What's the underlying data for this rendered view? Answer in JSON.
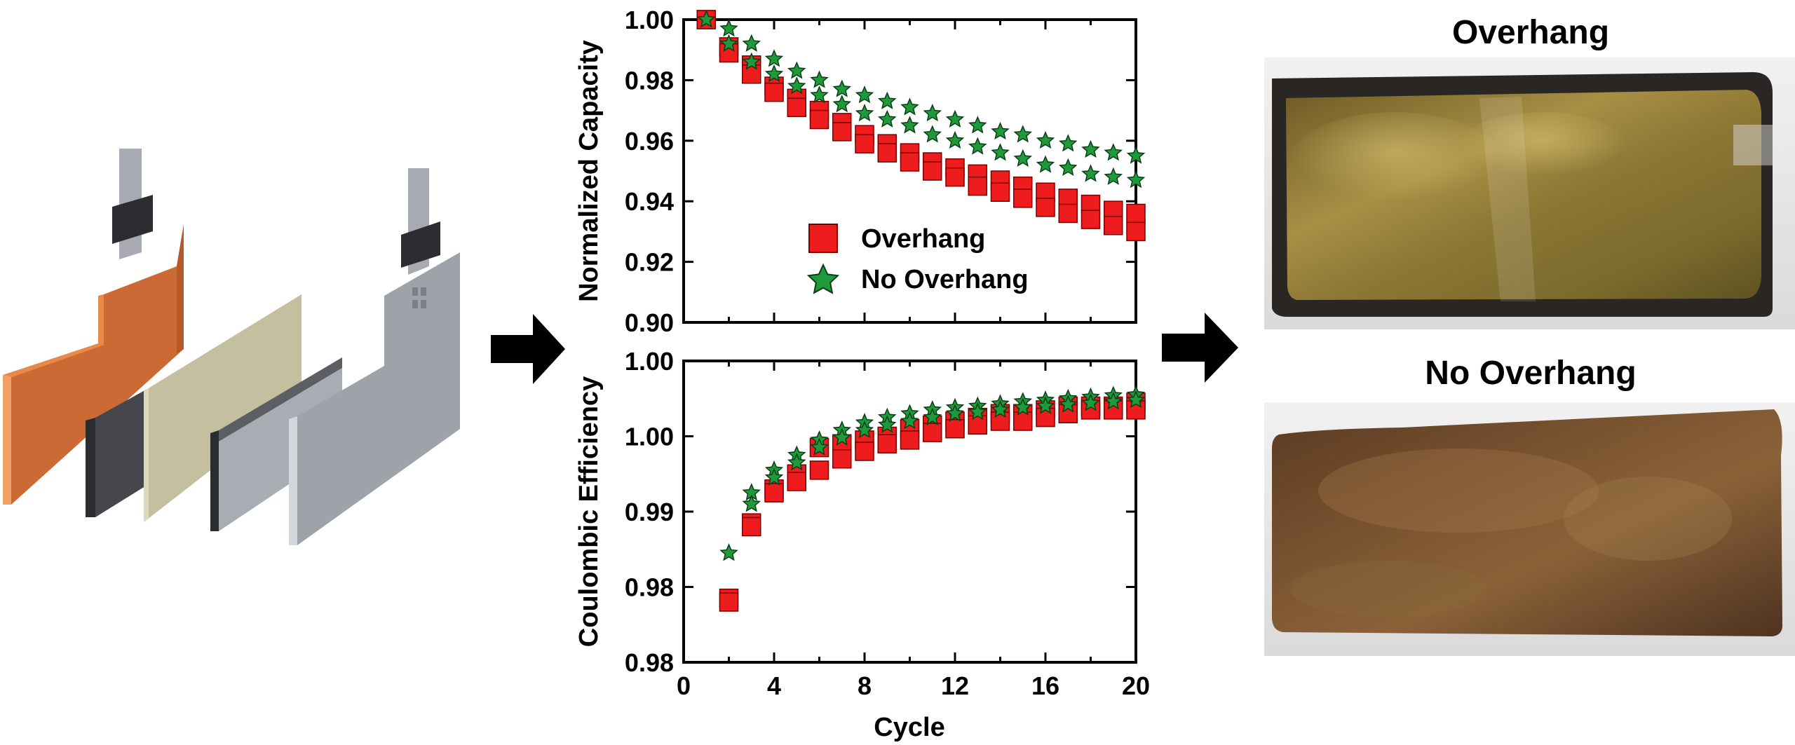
{
  "chart_data": [
    {
      "type": "scatter",
      "panel": "top",
      "ylabel": "Normalized Capacity",
      "xlabel": "",
      "xlim": [
        0,
        20
      ],
      "ylim": [
        0.9,
        1.0
      ],
      "y_ticks": [
        "1.00",
        "0.98",
        "0.96",
        "0.94",
        "0.92",
        "0.90"
      ],
      "legend": {
        "position": "center-left",
        "entries": [
          "Overhang",
          "No Overhang"
        ]
      },
      "series": [
        {
          "name": "Overhang",
          "marker": "square",
          "color": "#ee1c1c",
          "x": [
            1,
            1,
            2,
            2,
            3,
            3,
            4,
            4,
            5,
            5,
            6,
            6,
            7,
            7,
            8,
            8,
            9,
            9,
            10,
            10,
            11,
            11,
            12,
            12,
            13,
            13,
            14,
            14,
            15,
            15,
            16,
            16,
            17,
            17,
            18,
            18,
            19,
            19,
            20,
            20
          ],
          "y": [
            1.0,
            1.0,
            0.991,
            0.989,
            0.985,
            0.982,
            0.978,
            0.976,
            0.974,
            0.971,
            0.97,
            0.967,
            0.966,
            0.963,
            0.962,
            0.959,
            0.959,
            0.956,
            0.956,
            0.953,
            0.953,
            0.95,
            0.951,
            0.948,
            0.949,
            0.945,
            0.947,
            0.943,
            0.945,
            0.941,
            0.943,
            0.938,
            0.941,
            0.936,
            0.939,
            0.934,
            0.937,
            0.932,
            0.936,
            0.93
          ]
        },
        {
          "name": "No Overhang",
          "marker": "star",
          "color": "#1f9a3a",
          "x": [
            1,
            1,
            2,
            2,
            3,
            3,
            4,
            4,
            5,
            5,
            6,
            6,
            7,
            7,
            8,
            8,
            9,
            9,
            10,
            10,
            11,
            11,
            12,
            12,
            13,
            13,
            14,
            14,
            15,
            15,
            16,
            16,
            17,
            17,
            18,
            18,
            19,
            19,
            20,
            20
          ],
          "y": [
            1.0,
            1.0,
            0.997,
            0.992,
            0.992,
            0.986,
            0.987,
            0.982,
            0.983,
            0.978,
            0.98,
            0.975,
            0.977,
            0.972,
            0.975,
            0.969,
            0.973,
            0.967,
            0.971,
            0.965,
            0.969,
            0.962,
            0.967,
            0.96,
            0.965,
            0.958,
            0.963,
            0.956,
            0.962,
            0.954,
            0.96,
            0.952,
            0.959,
            0.951,
            0.957,
            0.949,
            0.956,
            0.948,
            0.955,
            0.947
          ]
        }
      ]
    },
    {
      "type": "scatter",
      "panel": "bottom",
      "ylabel": "Coulombic Efficiency",
      "xlabel": "Cycle",
      "xlim": [
        0,
        20
      ],
      "ylim": [
        0.97,
        1.01
      ],
      "x_ticks": [
        "0",
        "4",
        "8",
        "12",
        "16",
        "20"
      ],
      "y_ticks": [
        "1.00",
        "1.00",
        "0.99",
        "0.98",
        "0.98"
      ],
      "series": [
        {
          "name": "Overhang",
          "marker": "square",
          "color": "#ee1c1c",
          "x": [
            2,
            2,
            3,
            3,
            4,
            4,
            5,
            5,
            6,
            6,
            7,
            7,
            8,
            8,
            9,
            9,
            10,
            10,
            11,
            11,
            12,
            12,
            13,
            13,
            14,
            14,
            15,
            15,
            16,
            16,
            17,
            17,
            18,
            18,
            19,
            19,
            20,
            20
          ],
          "y": [
            0.9785,
            0.978,
            0.9885,
            0.988,
            0.993,
            0.9925,
            0.995,
            0.994,
            0.9985,
            0.9955,
            0.999,
            0.997,
            0.9995,
            0.998,
            1.0,
            0.999,
            1.001,
            0.9995,
            1.0015,
            1.0005,
            1.002,
            1.001,
            1.0025,
            1.0015,
            1.003,
            1.002,
            1.003,
            1.002,
            1.0035,
            1.0025,
            1.004,
            1.003,
            1.004,
            1.0035,
            1.004,
            1.0035,
            1.0045,
            1.0035
          ]
        },
        {
          "name": "No Overhang",
          "marker": "star",
          "color": "#1f9a3a",
          "x": [
            2,
            3,
            3,
            4,
            4,
            5,
            5,
            6,
            6,
            7,
            7,
            8,
            8,
            9,
            9,
            10,
            10,
            11,
            11,
            12,
            12,
            13,
            13,
            14,
            14,
            15,
            15,
            16,
            16,
            17,
            17,
            18,
            18,
            19,
            19,
            20,
            20
          ],
          "y": [
            0.9845,
            0.9925,
            0.991,
            0.9955,
            0.9945,
            0.9975,
            0.9965,
            0.9995,
            0.9985,
            1.0008,
            0.9998,
            1.0018,
            1.0008,
            1.0025,
            1.0015,
            1.003,
            1.002,
            1.0035,
            1.0025,
            1.0038,
            1.003,
            1.004,
            1.0032,
            1.0043,
            1.0035,
            1.0046,
            1.0038,
            1.0048,
            1.004,
            1.005,
            1.0042,
            1.0052,
            1.0044,
            1.0054,
            1.0046,
            1.0055,
            1.0048
          ]
        }
      ]
    }
  ],
  "photos": {
    "top_title": "Overhang",
    "bottom_title": "No Overhang"
  },
  "colors": {
    "anode": "#cc6a36",
    "separator": "#c4bf9e",
    "cathode": "#a3a8b0",
    "dark_plate": "#3e4044",
    "tab_band": "#2c2d31",
    "overhang_foil": "#8f7a33",
    "no_overhang_foil": "#6e4a2b"
  }
}
